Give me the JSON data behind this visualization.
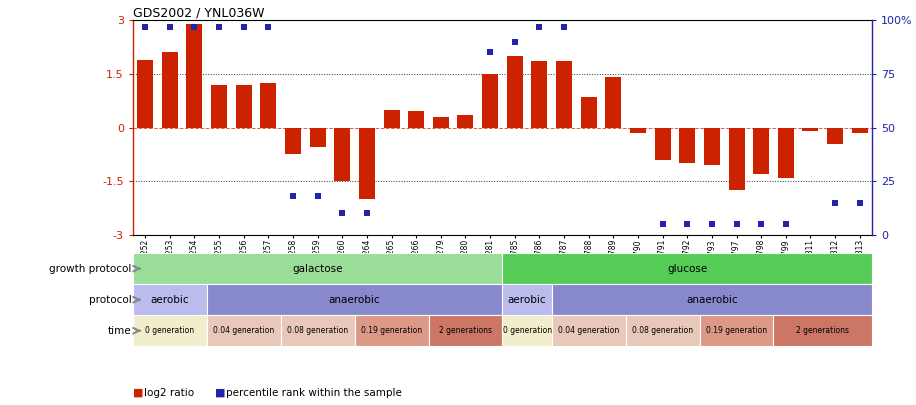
{
  "title": "GDS2002 / YNL036W",
  "samples": [
    "GSM41252",
    "GSM41253",
    "GSM41254",
    "GSM41255",
    "GSM41256",
    "GSM41257",
    "GSM41258",
    "GSM41259",
    "GSM41260",
    "GSM41264",
    "GSM41265",
    "GSM41266",
    "GSM41279",
    "GSM41280",
    "GSM41281",
    "GSM41785",
    "GSM41786",
    "GSM41787",
    "GSM41788",
    "GSM41789",
    "GSM41790",
    "GSM41791",
    "GSM41792",
    "GSM41793",
    "GSM41797",
    "GSM41798",
    "GSM41799",
    "GSM41811",
    "GSM41812",
    "GSM41813"
  ],
  "log2_ratio": [
    1.9,
    2.1,
    2.9,
    1.2,
    1.2,
    1.25,
    -0.75,
    -0.55,
    -1.5,
    -2.0,
    0.5,
    0.45,
    0.3,
    0.35,
    1.5,
    2.0,
    1.85,
    1.85,
    0.85,
    1.4,
    -0.15,
    -0.9,
    -1.0,
    -1.05,
    -1.75,
    -1.3,
    -1.4,
    -0.1,
    -0.45,
    -0.15
  ],
  "percentile": [
    97,
    97,
    97,
    97,
    97,
    97,
    18,
    18,
    10,
    10,
    null,
    null,
    null,
    null,
    85,
    90,
    97,
    97,
    null,
    null,
    null,
    5,
    5,
    5,
    5,
    5,
    5,
    null,
    15,
    15
  ],
  "bar_color": "#cc2200",
  "dot_color": "#2222aa",
  "bg_color": "#ffffff",
  "ylim": [
    -3,
    3
  ],
  "y2lim": [
    0,
    100
  ],
  "yticks": [
    -3,
    -1.5,
    0,
    1.5,
    3
  ],
  "y2ticks": [
    0,
    25,
    50,
    75,
    100
  ],
  "ytick_labels": [
    "-3",
    "-1.5",
    "0",
    "1.5",
    "3"
  ],
  "y2tick_labels": [
    "0",
    "25",
    "50",
    "75",
    "100%"
  ],
  "growth_protocol_row": [
    {
      "label": "galactose",
      "start": 0,
      "end": 15,
      "color": "#99dd99"
    },
    {
      "label": "glucose",
      "start": 15,
      "end": 30,
      "color": "#55cc55"
    }
  ],
  "protocol_row": [
    {
      "label": "aerobic",
      "start": 0,
      "end": 3,
      "color": "#bbbbee"
    },
    {
      "label": "anaerobic",
      "start": 3,
      "end": 15,
      "color": "#8888cc"
    },
    {
      "label": "aerobic",
      "start": 15,
      "end": 17,
      "color": "#bbbbee"
    },
    {
      "label": "anaerobic",
      "start": 17,
      "end": 30,
      "color": "#8888cc"
    }
  ],
  "time_row": [
    {
      "label": "0 generation",
      "start": 0,
      "end": 3,
      "color": "#f0eecc"
    },
    {
      "label": "0.04 generation",
      "start": 3,
      "end": 6,
      "color": "#e8c8b8"
    },
    {
      "label": "0.08 generation",
      "start": 6,
      "end": 9,
      "color": "#e8c8b8"
    },
    {
      "label": "0.19 generation",
      "start": 9,
      "end": 12,
      "color": "#dd9988"
    },
    {
      "label": "2 generations",
      "start": 12,
      "end": 15,
      "color": "#cc7766"
    },
    {
      "label": "0 generation",
      "start": 15,
      "end": 17,
      "color": "#f0eecc"
    },
    {
      "label": "0.04 generation",
      "start": 17,
      "end": 20,
      "color": "#e8c8b8"
    },
    {
      "label": "0.08 generation",
      "start": 20,
      "end": 23,
      "color": "#e8c8b8"
    },
    {
      "label": "0.19 generation",
      "start": 23,
      "end": 26,
      "color": "#dd9988"
    },
    {
      "label": "2 generations",
      "start": 26,
      "end": 30,
      "color": "#cc7766"
    }
  ],
  "left_labels": [
    "growth protocol",
    "protocol",
    "time"
  ],
  "legend_items": [
    {
      "color": "#cc2200",
      "label": "log2 ratio"
    },
    {
      "color": "#2222aa",
      "label": "percentile rank within the sample"
    }
  ],
  "arrow_color": "#888888"
}
